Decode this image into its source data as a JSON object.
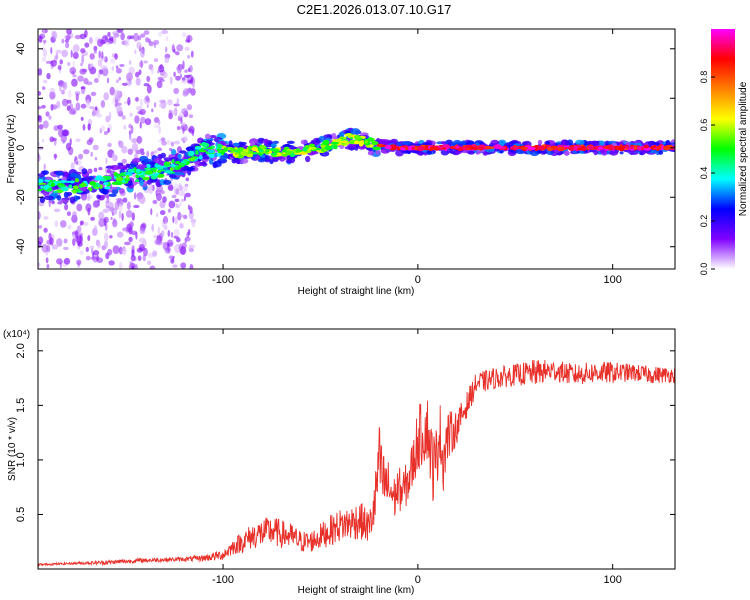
{
  "figure_title": "C2E1.2026.013.07.10.G17",
  "chart_data": [
    {
      "type": "heatmap",
      "name": "spectrogram",
      "xlabel": "Height of straight line (km)",
      "ylabel": "Frequency (Hz)",
      "xlim": [
        -195,
        132
      ],
      "ylim": [
        -49,
        48
      ],
      "xticks": [
        -100,
        0,
        100
      ],
      "xtick_labels": [
        "-100",
        "0",
        "100"
      ],
      "yticks": [
        -40,
        -20,
        0,
        20,
        40
      ],
      "ytick_labels": [
        "-40",
        "-20",
        "0",
        "20",
        "40"
      ],
      "ridge": {
        "x": [
          -195,
          -180,
          -170,
          -160,
          -150,
          -140,
          -130,
          -120,
          -110,
          -100,
          -90,
          -80,
          -70,
          -60,
          -50,
          -40,
          -35,
          -30,
          -25,
          -20,
          -10,
          0,
          20,
          50,
          80,
          100,
          132
        ],
        "y": [
          -15,
          -16,
          -15,
          -14,
          -12,
          -10,
          -9,
          -5,
          -1,
          -1,
          -2,
          -1,
          -2,
          -1,
          0,
          2,
          4,
          3,
          2,
          1,
          0,
          0,
          0,
          0,
          0,
          0,
          0
        ]
      },
      "colorbar": {
        "label": "Normalized spectral amplitude",
        "range": [
          0,
          1
        ],
        "ticks": [
          0.0,
          0.2,
          0.4,
          0.6,
          0.8
        ],
        "tick_labels": [
          "0.0",
          "0.2",
          "0.4",
          "0.6",
          "0.8"
        ],
        "colors": [
          "#ffffff",
          "#8000ff",
          "#0000ff",
          "#00ffff",
          "#00ff00",
          "#ffff00",
          "#ff8000",
          "#ff0000",
          "#ff00ff"
        ]
      }
    },
    {
      "type": "line",
      "name": "snr",
      "color": "#e8302a",
      "xlabel": "Height of straight line (km)",
      "ylabel": "SNR (10 * v/v)",
      "multiplier_label": "(x10⁴)",
      "xlim": [
        -195,
        132
      ],
      "ylim": [
        0,
        2.2
      ],
      "xticks": [
        -100,
        0,
        100
      ],
      "xtick_labels": [
        "-100",
        "0",
        "100"
      ],
      "yticks": [
        0.5,
        1.0,
        1.5,
        2.0
      ],
      "ytick_labels": [
        "0.5",
        "1.0",
        "1.5",
        "2.0"
      ],
      "series": [
        {
          "name": "SNR",
          "x": [
            -195,
            -180,
            -160,
            -140,
            -120,
            -110,
            -100,
            -95,
            -90,
            -85,
            -80,
            -75,
            -70,
            -65,
            -60,
            -55,
            -50,
            -45,
            -40,
            -35,
            -30,
            -25,
            -22,
            -20,
            -18,
            -15,
            -12,
            -10,
            -8,
            -5,
            -2,
            0,
            3,
            5,
            7,
            9,
            11,
            13,
            15,
            20,
            25,
            30,
            40,
            50,
            60,
            70,
            80,
            90,
            100,
            110,
            120,
            132
          ],
          "y": [
            0.04,
            0.05,
            0.06,
            0.08,
            0.09,
            0.1,
            0.13,
            0.2,
            0.25,
            0.3,
            0.33,
            0.35,
            0.32,
            0.3,
            0.25,
            0.25,
            0.3,
            0.35,
            0.4,
            0.42,
            0.45,
            0.38,
            0.6,
            1.0,
            0.8,
            0.75,
            0.65,
            0.75,
            0.7,
            0.8,
            1.0,
            1.2,
            1.25,
            1.3,
            1.0,
            0.9,
            1.3,
            1.0,
            1.2,
            1.3,
            1.5,
            1.7,
            1.75,
            1.78,
            1.8,
            1.82,
            1.78,
            1.8,
            1.8,
            1.8,
            1.78,
            1.78
          ],
          "spread": [
            0.01,
            0.01,
            0.02,
            0.02,
            0.02,
            0.03,
            0.05,
            0.07,
            0.1,
            0.12,
            0.13,
            0.14,
            0.13,
            0.12,
            0.1,
            0.1,
            0.12,
            0.14,
            0.15,
            0.16,
            0.18,
            0.15,
            0.25,
            0.35,
            0.3,
            0.25,
            0.2,
            0.2,
            0.2,
            0.2,
            0.25,
            0.3,
            0.3,
            0.3,
            0.35,
            0.35,
            0.3,
            0.3,
            0.25,
            0.15,
            0.12,
            0.1,
            0.1,
            0.1,
            0.12,
            0.1,
            0.1,
            0.1,
            0.1,
            0.08,
            0.08,
            0.07
          ]
        }
      ]
    }
  ]
}
